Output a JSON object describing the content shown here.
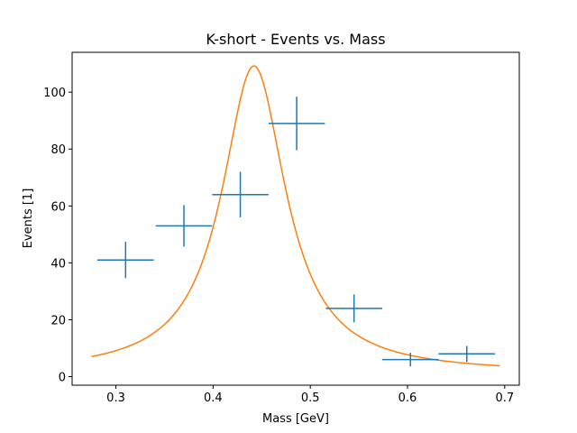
{
  "chart_data": {
    "type": "scatter",
    "title": "K-short - Events vs. Mass",
    "xlabel": "Mass [GeV]",
    "ylabel": "Events [1]",
    "xlim": [
      0.255,
      0.715
    ],
    "ylim": [
      -3,
      114
    ],
    "xticks": [
      0.3,
      0.4,
      0.5,
      0.6,
      0.7
    ],
    "xtick_labels": [
      "0.3",
      "0.4",
      "0.5",
      "0.6",
      "0.7"
    ],
    "yticks": [
      0,
      20,
      40,
      60,
      80,
      100
    ],
    "ytick_labels": [
      "0",
      "20",
      "40",
      "60",
      "80",
      "100"
    ],
    "grid": false,
    "data_color": "#1f77b4",
    "fit_color": "#ff7f0e",
    "series": [
      {
        "name": "data",
        "kind": "errorbar",
        "points": [
          {
            "x": 0.31,
            "y": 41,
            "xerr": 0.029,
            "yerr": 6.4
          },
          {
            "x": 0.37,
            "y": 53,
            "xerr": 0.029,
            "yerr": 7.3
          },
          {
            "x": 0.428,
            "y": 64,
            "xerr": 0.029,
            "yerr": 8.0
          },
          {
            "x": 0.486,
            "y": 89,
            "xerr": 0.029,
            "yerr": 9.4
          },
          {
            "x": 0.545,
            "y": 24,
            "xerr": 0.029,
            "yerr": 4.9
          },
          {
            "x": 0.603,
            "y": 6,
            "xerr": 0.029,
            "yerr": 2.4
          },
          {
            "x": 0.661,
            "y": 8,
            "xerr": 0.029,
            "yerr": 2.8
          }
        ]
      },
      {
        "name": "fit",
        "kind": "line",
        "model": "lorentzian",
        "x_range": [
          0.275,
          0.695
        ],
        "params": {
          "amplitude": 108,
          "center": 0.442,
          "gamma": 0.04,
          "offset": 1.2
        }
      }
    ]
  }
}
